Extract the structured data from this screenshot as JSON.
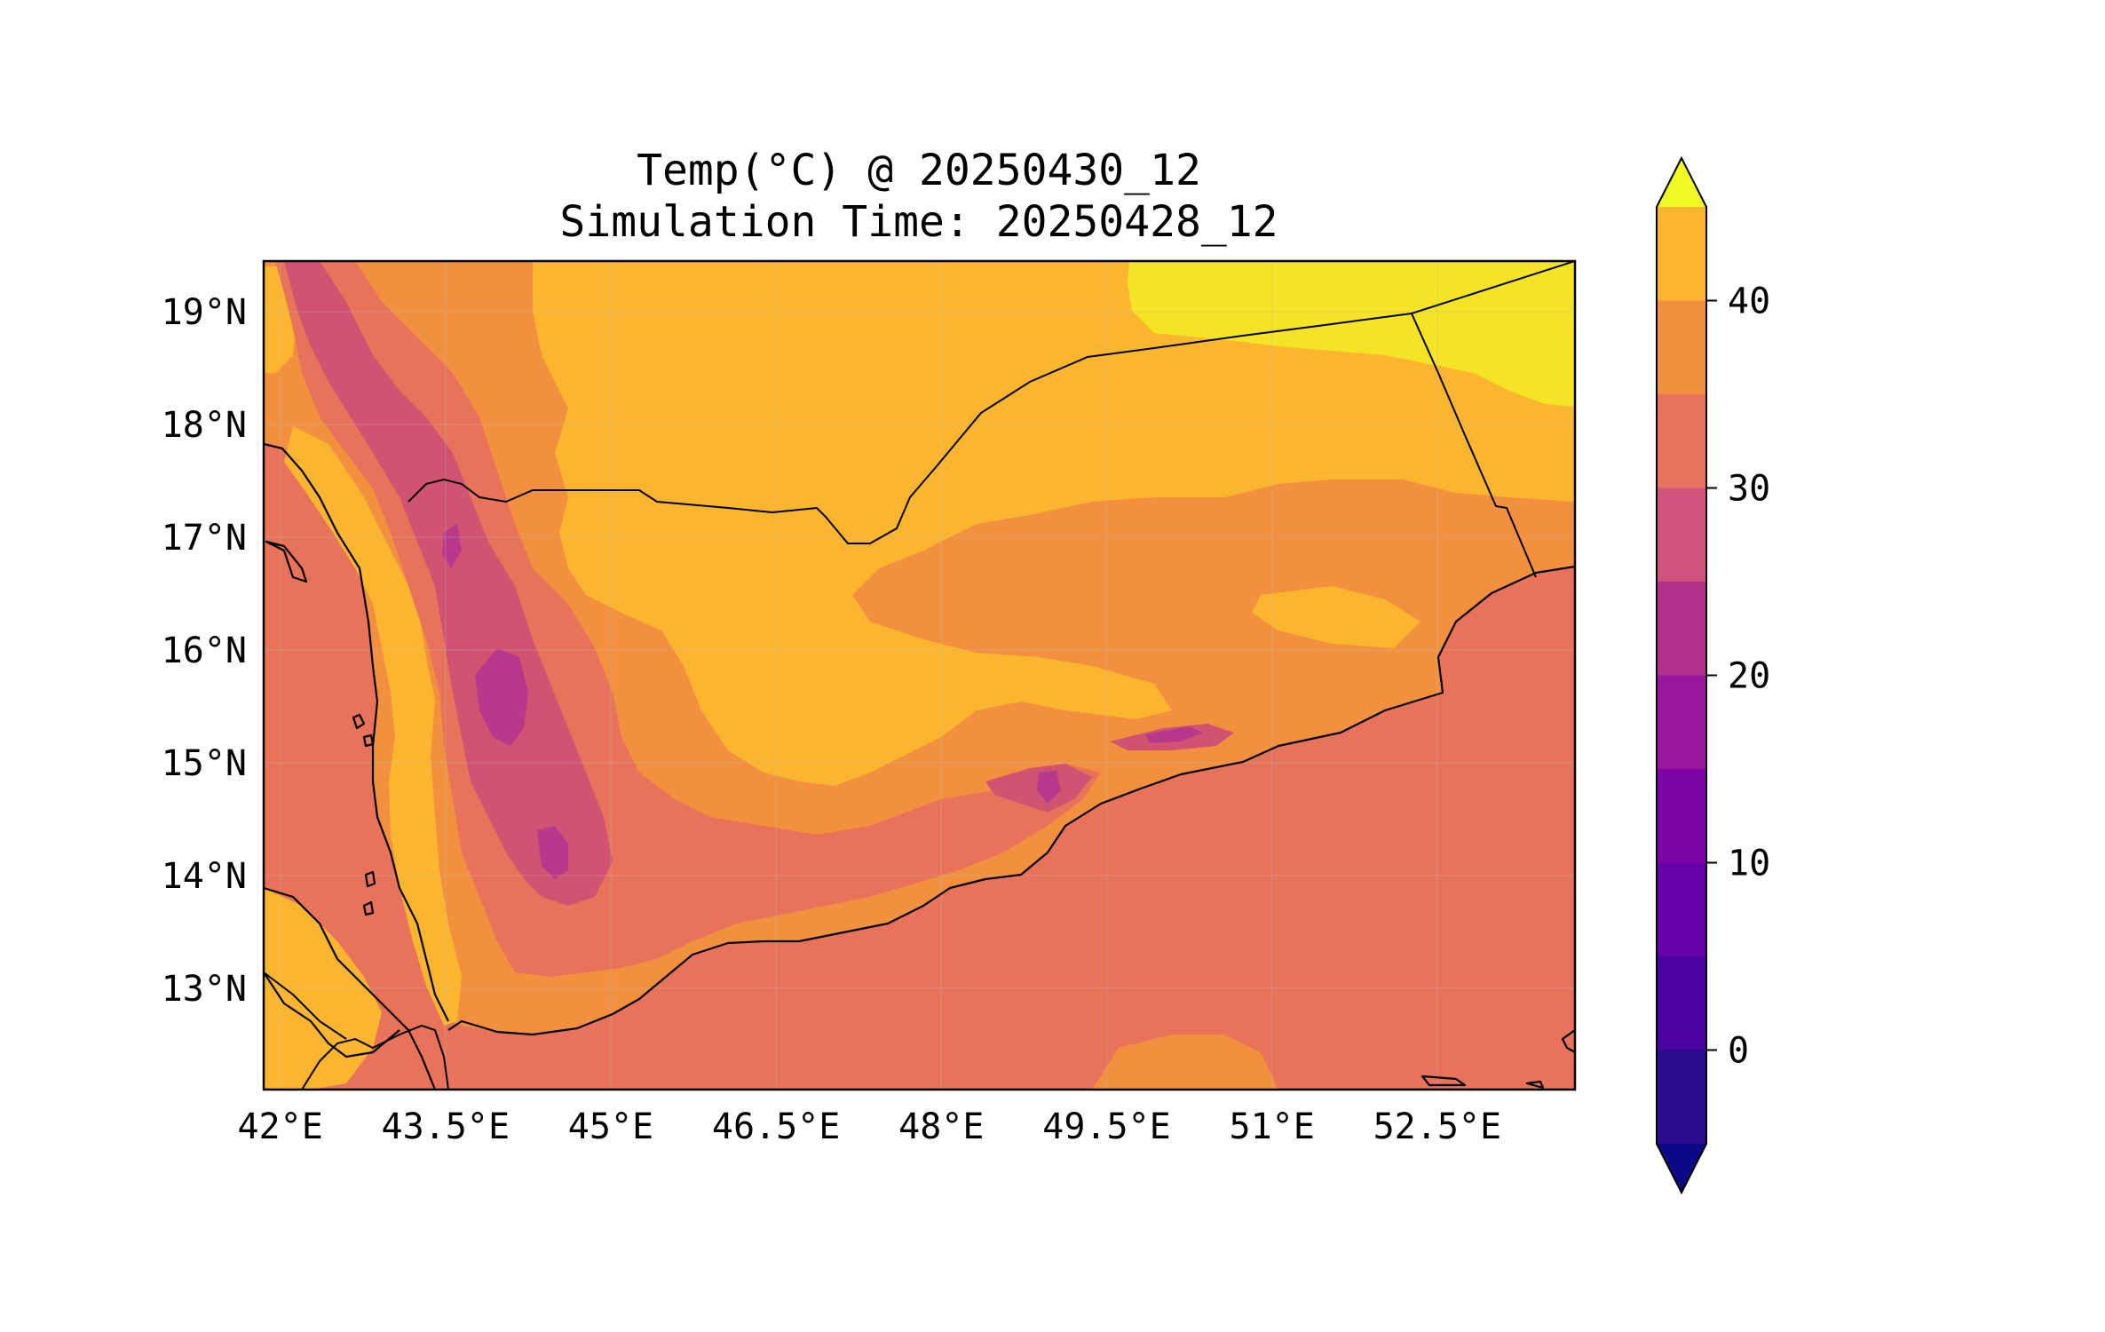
{
  "title": {
    "line1": "Temp(°C) @ 20250430_12",
    "line2": "Simulation Time: 20250428_12"
  },
  "map": {
    "lon_range": [
      41.85,
      53.75
    ],
    "lat_range": [
      12.1,
      19.45
    ],
    "x_ticks": [
      "42°E",
      "43.5°E",
      "45°E",
      "46.5°E",
      "48°E",
      "49.5°E",
      "51°E",
      "52.5°E"
    ],
    "y_ticks": [
      "19°N",
      "18°N",
      "17°N",
      "16°N",
      "15°N",
      "14°N",
      "13°N"
    ],
    "palette": {
      "sea": "#e8735a",
      "t25_30": "#e8735a",
      "t30_35": "#f3903f",
      "t35_40": "#fcb52e",
      "t40_45": "#f5e425",
      "t20_25": "#d25272",
      "t15_20": "#b8398c",
      "ocean_highlight": "#f3903f"
    }
  },
  "colorbar": {
    "labels": [
      "0",
      "10",
      "20",
      "30",
      "40"
    ],
    "levels": [
      -5,
      0,
      5,
      10,
      15,
      20,
      25,
      30,
      35,
      40,
      45
    ],
    "extend": "both",
    "colors": [
      "#1f0c8d",
      "#3f049c",
      "#5d01a6",
      "#7a02a8",
      "#9511a1",
      "#b12a90",
      "#c9417e",
      "#de5f65",
      "#e8735a",
      "#f3903f",
      "#fcb52e",
      "#f5e425"
    ],
    "band_colors": [
      "#2a0d8f",
      "#4a02a0",
      "#6700a8",
      "#7f04a8",
      "#9c179e",
      "#b52f8c",
      "#d1527c",
      "#e8735a",
      "#f3903f",
      "#fcb52e",
      "#f5e425"
    ],
    "under_color": "#0d0887",
    "over_color": "#f0f921"
  }
}
